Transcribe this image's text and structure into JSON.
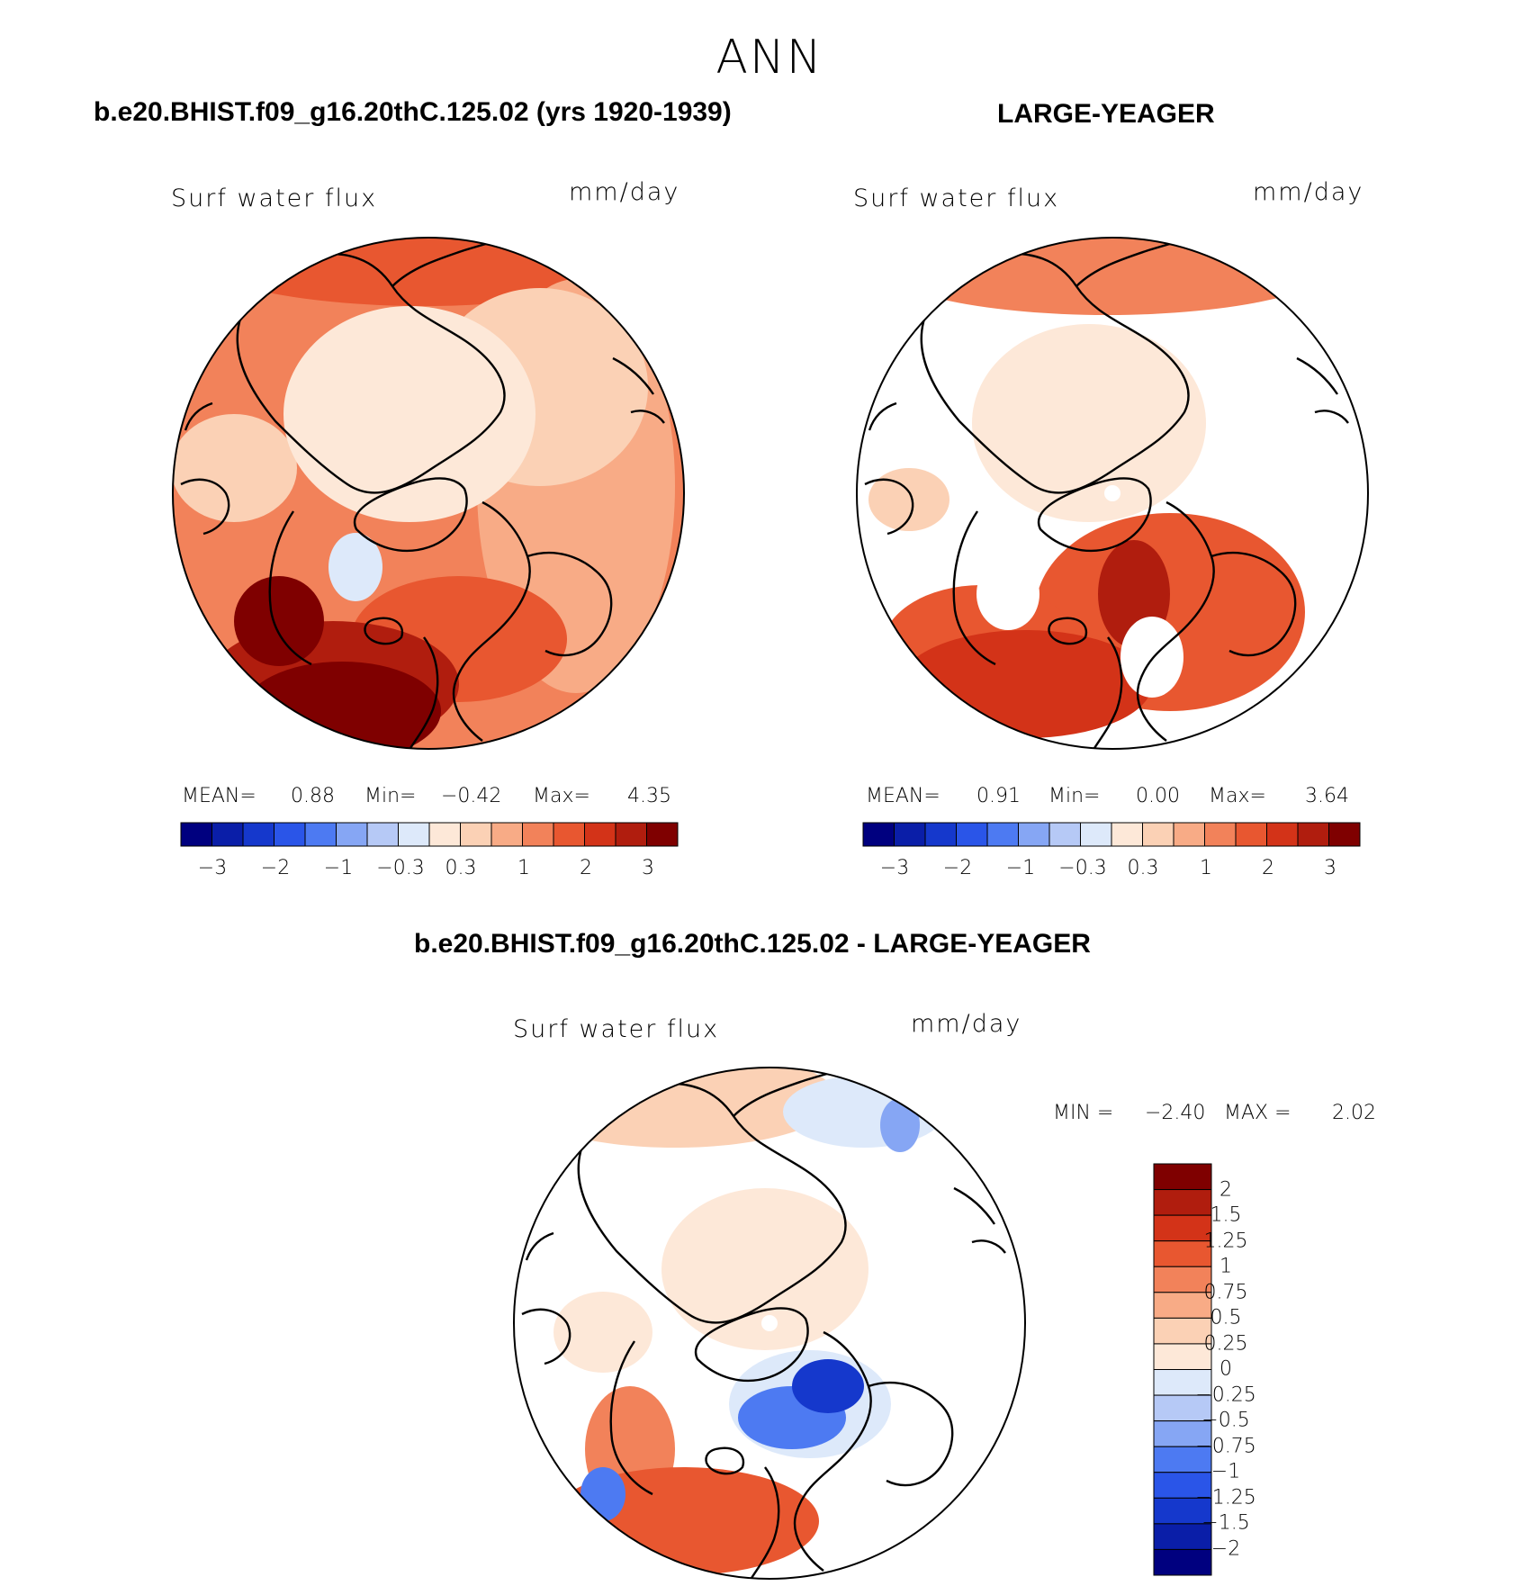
{
  "figure": {
    "title": "ANN"
  },
  "panels": [
    {
      "title": "b.e20.BHIST.f09_g16.20thC.125.02 (yrs 1920-1939)",
      "variable": "Surf water flux",
      "units": "mm/day",
      "stats": {
        "mean_label": "MEAN=",
        "mean": "0.88",
        "min_label": "Min=",
        "min": "−0.42",
        "max_label": "Max=",
        "max": "4.35"
      },
      "colorbar": {
        "ticks": [
          "−3",
          "−2",
          "−1",
          "−0.3",
          "0.3",
          "1",
          "2",
          "3"
        ]
      }
    },
    {
      "title": "LARGE-YEAGER",
      "variable": "Surf water flux",
      "units": "mm/day",
      "stats": {
        "mean_label": "MEAN=",
        "mean": "0.91",
        "min_label": "Min=",
        "min": "0.00",
        "max_label": "Max=",
        "max": "3.64"
      },
      "colorbar": {
        "ticks": [
          "−3",
          "−2",
          "−1",
          "−0.3",
          "0.3",
          "1",
          "2",
          "3"
        ]
      }
    },
    {
      "title": "b.e20.BHIST.f09_g16.20thC.125.02 - LARGE-YEAGER",
      "variable": "Surf water flux",
      "units": "mm/day",
      "stats": {
        "min_label": "MIN =",
        "min": "−2.40",
        "max_label": "MAX =",
        "max": "2.02"
      },
      "colorbar": {
        "ticks": [
          "2",
          "1.5",
          "1.25",
          "1",
          "0.75",
          "0.5",
          "0.25",
          "0",
          "−0.25",
          "−0.5",
          "−0.75",
          "−1",
          "−1.25",
          "−1.5",
          "−2"
        ]
      }
    }
  ],
  "colors": {
    "horizontal_colorbar": [
      "#00007f",
      "#0a1ea8",
      "#1538cc",
      "#2a55e8",
      "#4d7af2",
      "#86a6f4",
      "#b6c9f6",
      "#dde9fa",
      "#fde8d8",
      "#fbd1b5",
      "#f8ab86",
      "#f2825a",
      "#e85730",
      "#d33318",
      "#b01d0e",
      "#7f0000"
    ],
    "vertical_colorbar": [
      "#7f0000",
      "#b01d0e",
      "#d33318",
      "#e85730",
      "#f2825a",
      "#f8ab86",
      "#fbd1b5",
      "#fde8d8",
      "#dde9fa",
      "#b6c9f6",
      "#86a6f4",
      "#4d7af2",
      "#2a55e8",
      "#1538cc",
      "#0a1ea8",
      "#00007f"
    ],
    "coastline": "#000000"
  }
}
